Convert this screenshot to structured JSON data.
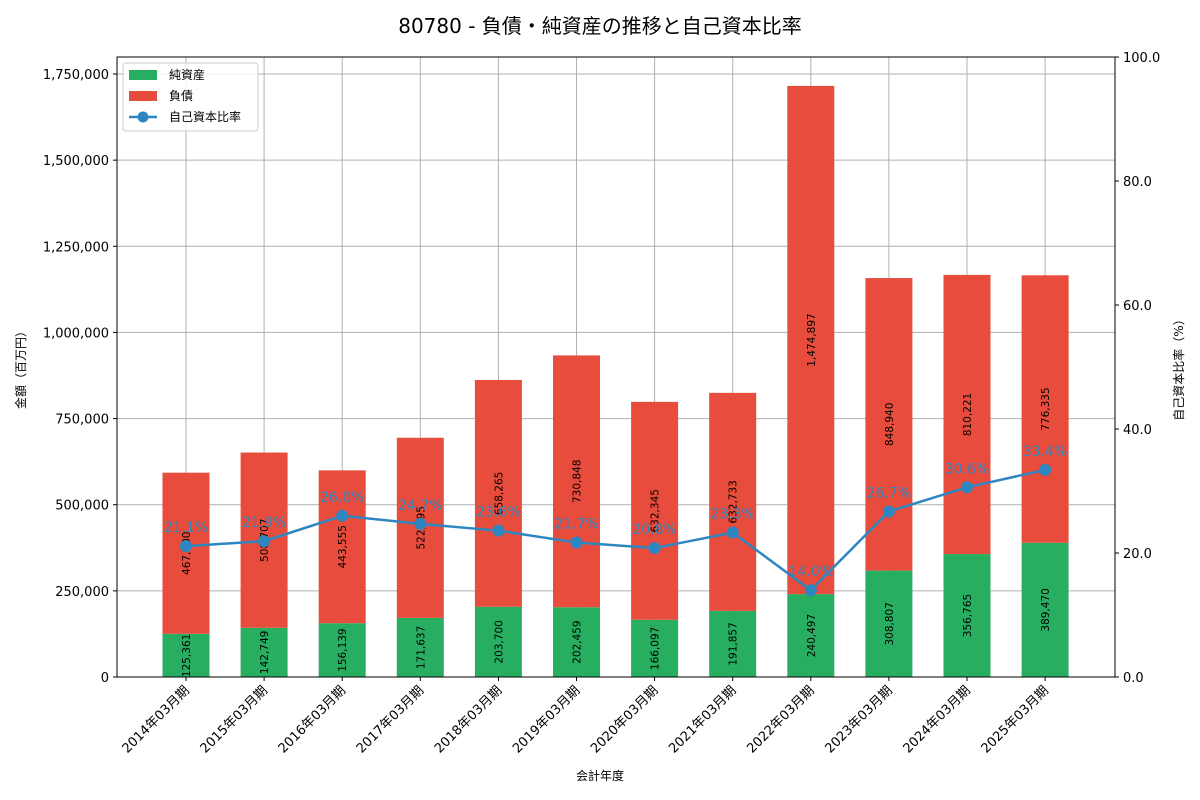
{
  "chart_data": {
    "type": "bar",
    "subtype": "stacked bar with line on secondary axis",
    "title": "80780 - 負債・純資産の推移と自己資本比率",
    "xlabel": "会計年度",
    "ylabel": "金額（百万円）",
    "y2label": "自己資本比率（%）",
    "categories": [
      "2014年03月期",
      "2015年03月期",
      "2016年03月期",
      "2017年03月期",
      "2018年03月期",
      "2019年03月期",
      "2020年03月期",
      "2021年03月期",
      "2022年03月期",
      "2023年03月期",
      "2024年03月期",
      "2025年03月期"
    ],
    "series": [
      {
        "name": "純資産",
        "type": "bar",
        "color": "#27ae60",
        "values": [
          125361,
          142749,
          156139,
          171637,
          203700,
          202459,
          166097,
          191857,
          240497,
          308807,
          356765,
          389470
        ],
        "labels": [
          "125,361",
          "142,749",
          "156,139",
          "171,637",
          "203,700",
          "202,459",
          "166,097",
          "191,857",
          "240,497",
          "308,807",
          "356,765",
          "389,470"
        ]
      },
      {
        "name": "負債",
        "type": "bar",
        "color": "#e74c3c",
        "values": [
          467600,
          508707,
          443555,
          522595,
          658265,
          730848,
          632345,
          632733,
          1474897,
          848940,
          810221,
          776335
        ],
        "labels": [
          "467,600",
          "508,707",
          "443,555",
          "522,595",
          "658,265",
          "730,848",
          "632,345",
          "632,733",
          "1,474,897",
          "848,940",
          "810,221",
          "776,335"
        ]
      },
      {
        "name": "自己資本比率",
        "type": "line",
        "axis": "right",
        "color": "#2e86c1",
        "values": [
          21.1,
          21.9,
          26.0,
          24.7,
          23.6,
          21.7,
          20.8,
          23.3,
          14.0,
          26.7,
          30.6,
          33.4
        ],
        "labels": [
          "21.1%",
          "21.9%",
          "26.0%",
          "24.7%",
          "23.6%",
          "21.7%",
          "20.8%",
          "23.3%",
          "14.0%",
          "26.7%",
          "30.6%",
          "33.4%"
        ]
      }
    ],
    "yticks": [
      "0",
      "250,000",
      "500,000",
      "750,000",
      "1,000,000",
      "1,250,000",
      "1,500,000",
      "1,750,000"
    ],
    "y2ticks": [
      "0.0",
      "20.0",
      "40.0",
      "60.0",
      "80.0",
      "100.0"
    ],
    "ylim": [
      0,
      1800000
    ],
    "y2lim": [
      0,
      100
    ],
    "grid": true,
    "legend_position": "upper left"
  }
}
